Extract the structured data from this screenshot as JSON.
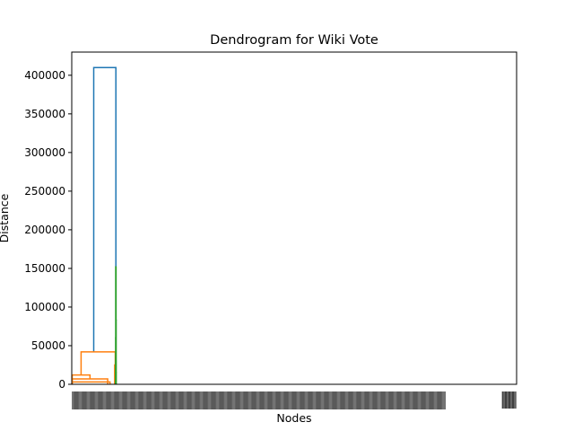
{
  "chart_data": {
    "type": "dendrogram",
    "title": "Dendrogram for Wiki Vote",
    "xlabel": "Nodes",
    "ylabel": "Distance",
    "ylim": [
      0,
      430000
    ],
    "yticks": [
      0,
      50000,
      100000,
      150000,
      200000,
      250000,
      300000,
      350000,
      400000
    ],
    "ytick_labels": [
      "0",
      "50000",
      "100000",
      "150000",
      "200000",
      "250000",
      "300000",
      "350000",
      "400000"
    ],
    "leaf_count": 2500,
    "colors": {
      "root": "#1f77b4",
      "cluster1": "#ff7f0e",
      "cluster2": "#2ca02c"
    },
    "links": [
      {
        "id": "root-link",
        "color": "root",
        "xl": 1235,
        "xr": 2480,
        "yl": 42000,
        "yr": 152000,
        "top": 410000
      },
      {
        "id": "orange-top",
        "color": "cluster1",
        "xl": 525,
        "xr": 2445,
        "yl": 12000,
        "yr": 7000,
        "top": 42000
      },
      {
        "id": "orange-left",
        "color": "cluster1",
        "xl": 25,
        "xr": 1025,
        "yl": 0,
        "yr": 7000,
        "top": 12000
      },
      {
        "id": "orange-mid",
        "color": "cluster1",
        "xl": 25,
        "xr": 2020,
        "yl": 0,
        "yr": 0,
        "top": 7000
      },
      {
        "id": "orange-low",
        "color": "cluster1",
        "xl": 25,
        "xr": 2150,
        "yl": 0,
        "yr": 0,
        "top": 3000
      },
      {
        "id": "orange-right",
        "color": "cluster1",
        "xl": 2410,
        "xr": 2450,
        "yl": 0,
        "yr": 0,
        "top": 25000
      },
      {
        "id": "green-top",
        "color": "cluster2",
        "xl": 2470,
        "xr": 2490,
        "yl": 60000,
        "yr": 83000,
        "top": 152000
      },
      {
        "id": "green-a",
        "color": "cluster2",
        "xl": 2465,
        "xr": 2478,
        "yl": 20000,
        "yr": 35000,
        "top": 60000
      },
      {
        "id": "green-b",
        "color": "cluster2",
        "xl": 2484,
        "xr": 2496,
        "yl": 30000,
        "yr": 15000,
        "top": 83000
      },
      {
        "id": "green-c",
        "color": "cluster2",
        "xl": 2462,
        "xr": 2468,
        "yl": 0,
        "yr": 0,
        "top": 20000
      },
      {
        "id": "green-d",
        "color": "cluster2",
        "xl": 2474,
        "xr": 2482,
        "yl": 0,
        "yr": 0,
        "top": 35000
      },
      {
        "id": "green-e",
        "color": "cluster2",
        "xl": 2481,
        "xr": 2488,
        "yl": 0,
        "yr": 0,
        "top": 30000
      },
      {
        "id": "green-f",
        "color": "cluster2",
        "xl": 2492,
        "xr": 2499,
        "yl": 0,
        "yr": 0,
        "top": 15000
      }
    ]
  }
}
